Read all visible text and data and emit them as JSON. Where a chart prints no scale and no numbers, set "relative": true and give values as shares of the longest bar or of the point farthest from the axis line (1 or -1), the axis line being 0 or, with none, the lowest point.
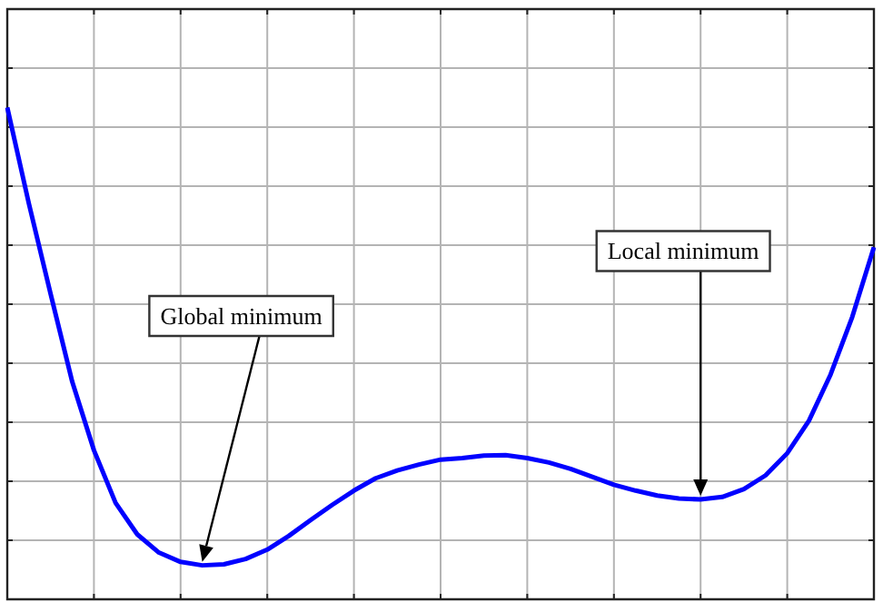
{
  "chart_data": {
    "type": "line",
    "relative": true,
    "grid": true,
    "legend": false,
    "marker": "none",
    "line_style": "solid",
    "categories": [
      null,
      null,
      null,
      null,
      null,
      null,
      null,
      null,
      null,
      null,
      null,
      null,
      null,
      null,
      null,
      null,
      null,
      null,
      null,
      null,
      null,
      null,
      null,
      null,
      null,
      null,
      null,
      null,
      null,
      null,
      null,
      null,
      null,
      null,
      null,
      null,
      null,
      null,
      null,
      null,
      null
    ],
    "series": [
      {
        "color": "#0000ff",
        "values": [
          1.0,
          0.804,
          0.621,
          0.442,
          0.303,
          0.196,
          0.132,
          0.095,
          0.076,
          0.069,
          0.071,
          0.082,
          0.101,
          0.129,
          0.161,
          0.192,
          0.221,
          0.246,
          0.262,
          0.274,
          0.284,
          0.287,
          0.292,
          0.293,
          0.287,
          0.278,
          0.265,
          0.249,
          0.233,
          0.221,
          0.211,
          0.205,
          0.203,
          0.208,
          0.224,
          0.252,
          0.297,
          0.363,
          0.457,
          0.574,
          0.716
        ]
      }
    ],
    "annotations": [
      "Global minimum",
      "Local minimum"
    ]
  }
}
